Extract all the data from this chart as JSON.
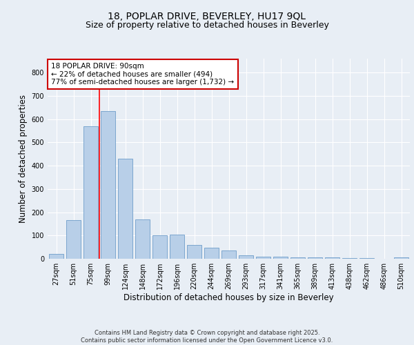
{
  "title_line1": "18, POPLAR DRIVE, BEVERLEY, HU17 9QL",
  "title_line2": "Size of property relative to detached houses in Beverley",
  "xlabel": "Distribution of detached houses by size in Beverley",
  "ylabel": "Number of detached properties",
  "categories": [
    "27sqm",
    "51sqm",
    "75sqm",
    "99sqm",
    "124sqm",
    "148sqm",
    "172sqm",
    "196sqm",
    "220sqm",
    "244sqm",
    "269sqm",
    "293sqm",
    "317sqm",
    "341sqm",
    "365sqm",
    "389sqm",
    "413sqm",
    "438sqm",
    "462sqm",
    "486sqm",
    "510sqm"
  ],
  "values": [
    20,
    165,
    570,
    635,
    430,
    170,
    100,
    103,
    58,
    48,
    35,
    15,
    10,
    8,
    5,
    5,
    5,
    3,
    2,
    1,
    5
  ],
  "bar_color": "#b8cfe8",
  "bar_edge_color": "#5a8fc2",
  "red_line_x": 2.5,
  "annotation_text": "18 POPLAR DRIVE: 90sqm\n← 22% of detached houses are smaller (494)\n77% of semi-detached houses are larger (1,732) →",
  "annotation_box_color": "#ffffff",
  "annotation_box_edge": "#cc0000",
  "ylim": [
    0,
    860
  ],
  "yticks": [
    0,
    100,
    200,
    300,
    400,
    500,
    600,
    700,
    800
  ],
  "background_color": "#e8eef5",
  "grid_color": "#ffffff",
  "footer_text": "Contains HM Land Registry data © Crown copyright and database right 2025.\nContains public sector information licensed under the Open Government Licence v3.0.",
  "title_fontsize": 10,
  "subtitle_fontsize": 9,
  "tick_fontsize": 7,
  "label_fontsize": 8.5,
  "annotation_fontsize": 7.5
}
